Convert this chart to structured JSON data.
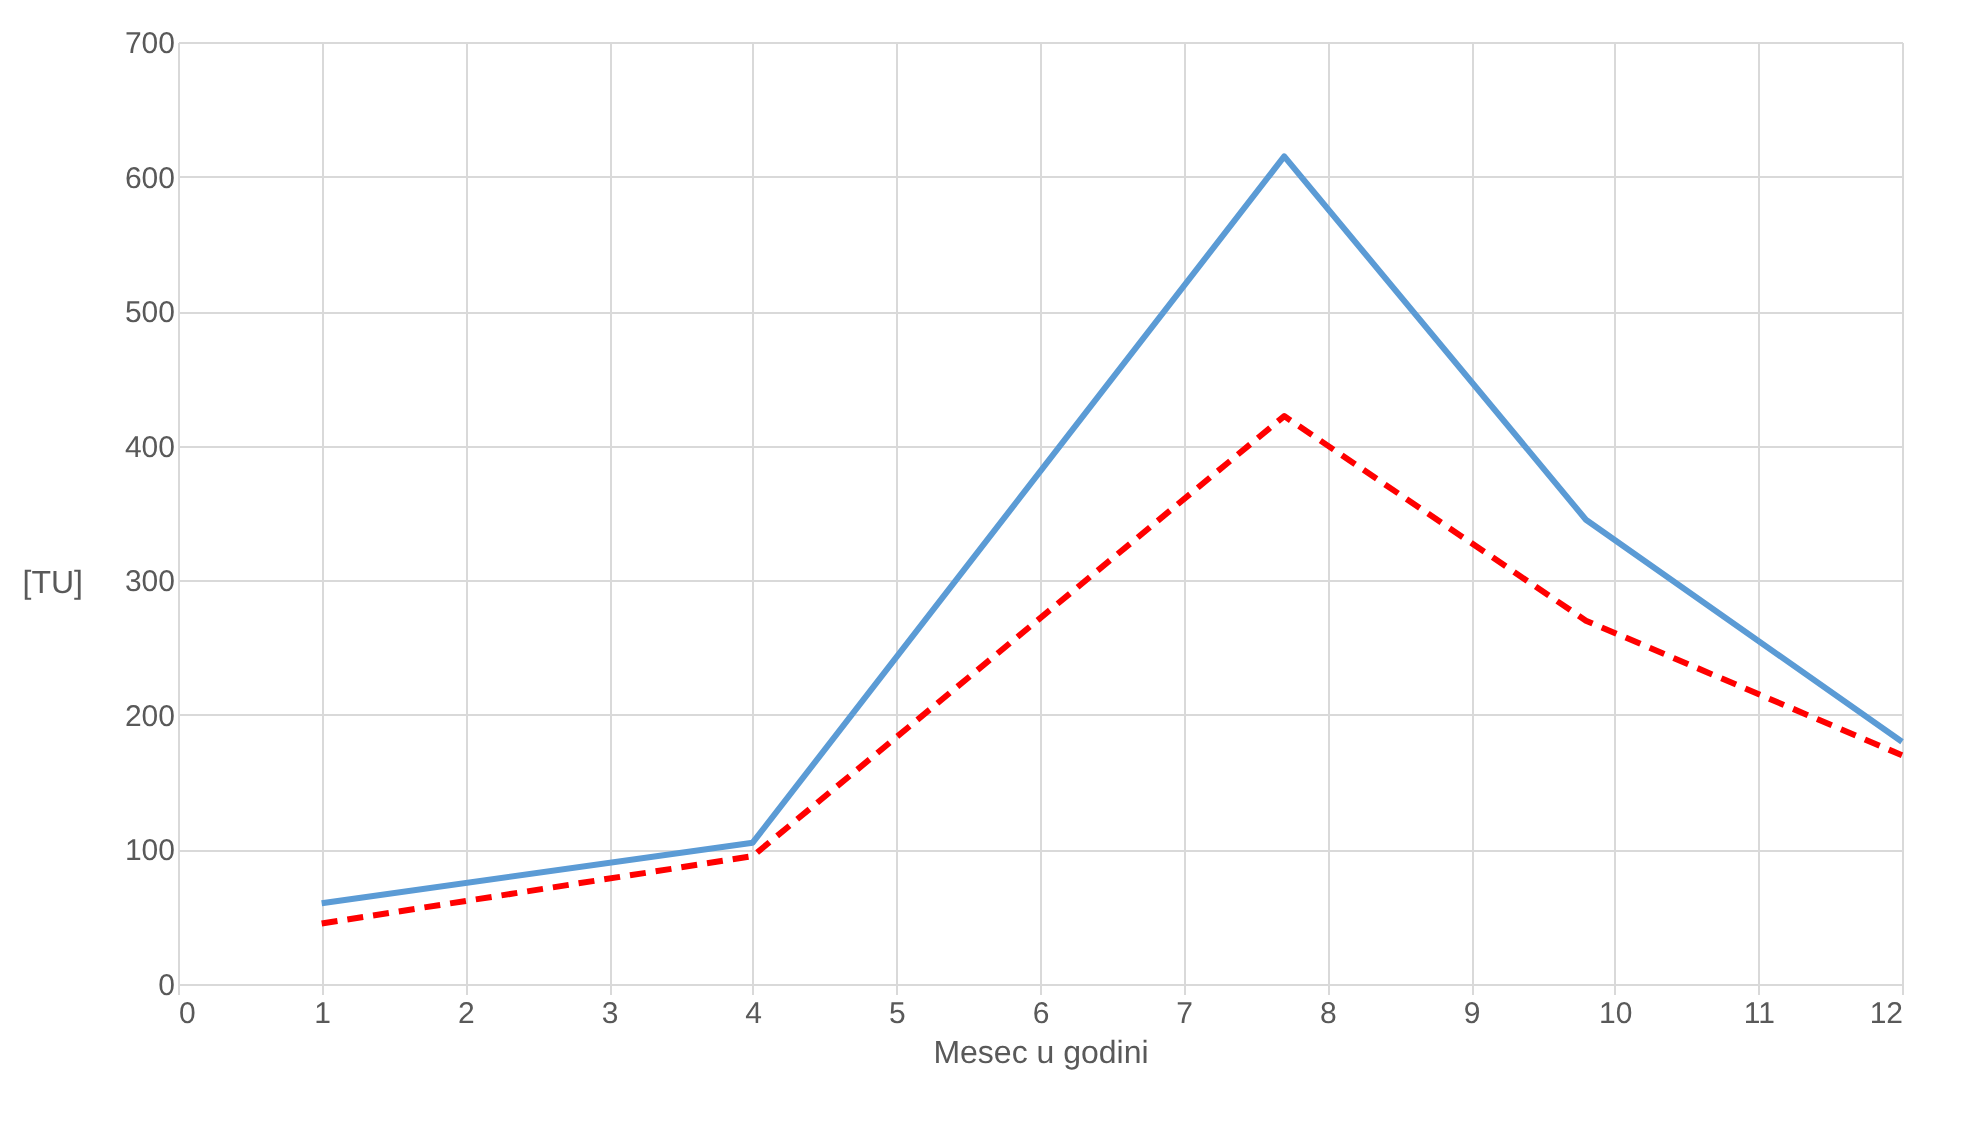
{
  "chart_data": {
    "type": "line",
    "xlabel": "Mesec u godini",
    "ylabel": "[TU]",
    "xlim": [
      0,
      12
    ],
    "xticks": [
      0,
      1,
      2,
      3,
      4,
      5,
      6,
      7,
      8,
      9,
      10,
      11,
      12
    ],
    "ylim": [
      0,
      700
    ],
    "yticks": [
      0,
      100,
      200,
      300,
      400,
      500,
      600,
      700
    ],
    "grid": true,
    "series": [
      {
        "color": "#5b9bd5",
        "line_style": "solid",
        "x": [
          1,
          4,
          7.7,
          9.8,
          12
        ],
        "values": [
          60,
          105,
          615,
          345,
          180
        ]
      },
      {
        "color": "#ff0000",
        "line_style": "dashed",
        "x": [
          1,
          4,
          7.7,
          9.8,
          12
        ],
        "values": [
          45,
          95,
          422,
          270,
          170
        ]
      }
    ]
  }
}
